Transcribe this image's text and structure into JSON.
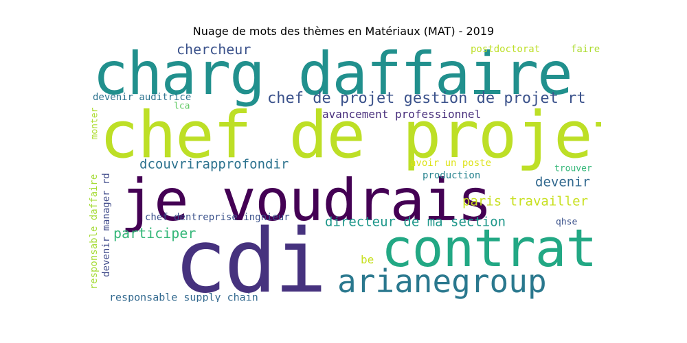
{
  "title": "Nuage de mots des thèmes en Matériaux (MAT) - 2019",
  "words": [
    {
      "text": "charg daffaire",
      "color": "#21908d"
    },
    {
      "text": "chef de projet",
      "color": "#bddf26"
    },
    {
      "text": "je voudrais",
      "color": "#440154"
    },
    {
      "text": "cdi",
      "color": "#46327e"
    },
    {
      "text": "contrat",
      "color": "#22a884"
    },
    {
      "text": "arianegroup",
      "color": "#2a788e"
    },
    {
      "text": "chercheur",
      "color": "#3b528b"
    },
    {
      "text": "postdoctorat",
      "color": "#bddf26"
    },
    {
      "text": "faire",
      "color": "#addc30"
    },
    {
      "text": "chef de projet gestion de projet rt",
      "color": "#3b528b"
    },
    {
      "text": "devenir auditrice",
      "color": "#2c728e"
    },
    {
      "text": "lca",
      "color": "#5ec962"
    },
    {
      "text": "avancement professionnel",
      "color": "#472d7b"
    },
    {
      "text": "monter",
      "color": "#addc30"
    },
    {
      "text": "dcouvrirapprofondir",
      "color": "#2c728e"
    },
    {
      "text": "avoir un poste",
      "color": "#dde318"
    },
    {
      "text": "trouver",
      "color": "#35b779"
    },
    {
      "text": "production",
      "color": "#26828e"
    },
    {
      "text": "devenir",
      "color": "#31688e"
    },
    {
      "text": "paris travailler",
      "color": "#c8e020"
    },
    {
      "text": "responsable daffaire",
      "color": "#a5db36"
    },
    {
      "text": "devenir manager rd",
      "color": "#3e4989"
    },
    {
      "text": "chef dentreprise ingnieur",
      "color": "#3b528b"
    },
    {
      "text": "directeur de ma section",
      "color": "#1f988b"
    },
    {
      "text": "qhse",
      "color": "#3b528b"
    },
    {
      "text": "participer",
      "color": "#35b779"
    },
    {
      "text": "be",
      "color": "#c8e020"
    },
    {
      "text": "responsable supply chain",
      "color": "#31688e"
    }
  ]
}
